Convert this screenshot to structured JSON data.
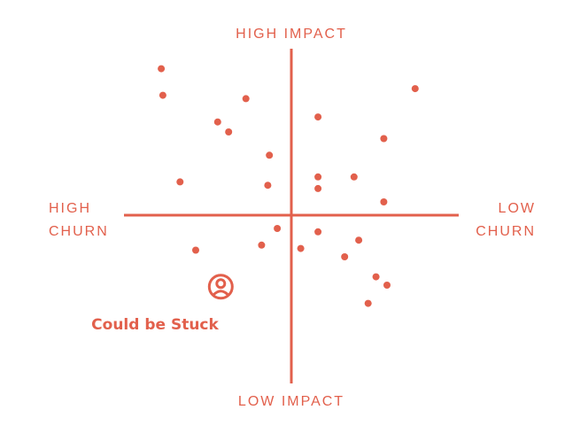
{
  "chart_data": {
    "type": "scatter",
    "title": "",
    "xlim": [
      -1,
      1
    ],
    "ylim": [
      -1,
      1
    ],
    "grid": false,
    "color": "#E2604C",
    "axis_labels": {
      "top": "HIGH IMPACT",
      "bottom": "LOW IMPACT",
      "left": [
        "HIGH",
        "CHURN"
      ],
      "right": [
        "LOW",
        "CHURN"
      ]
    },
    "annotation": {
      "label": "Could be Stuck",
      "icon": "user-circle-icon",
      "x": -0.45,
      "y": -0.43
    },
    "points": [
      {
        "x": -0.83,
        "y": 0.88
      },
      {
        "x": -0.82,
        "y": 0.72
      },
      {
        "x": -0.29,
        "y": 0.7
      },
      {
        "x": -0.47,
        "y": 0.56
      },
      {
        "x": -0.4,
        "y": 0.5
      },
      {
        "x": 0.17,
        "y": 0.59
      },
      {
        "x": 0.79,
        "y": 0.76
      },
      {
        "x": 0.59,
        "y": 0.46
      },
      {
        "x": -0.14,
        "y": 0.36
      },
      {
        "x": -0.71,
        "y": 0.2
      },
      {
        "x": -0.15,
        "y": 0.18
      },
      {
        "x": 0.17,
        "y": 0.23
      },
      {
        "x": 0.17,
        "y": 0.16
      },
      {
        "x": 0.4,
        "y": 0.23
      },
      {
        "x": 0.59,
        "y": 0.08
      },
      {
        "x": -0.09,
        "y": -0.08
      },
      {
        "x": 0.17,
        "y": -0.1
      },
      {
        "x": -0.19,
        "y": -0.18
      },
      {
        "x": -0.61,
        "y": -0.21
      },
      {
        "x": 0.06,
        "y": -0.2
      },
      {
        "x": 0.43,
        "y": -0.15
      },
      {
        "x": 0.34,
        "y": -0.25
      },
      {
        "x": 0.54,
        "y": -0.37
      },
      {
        "x": 0.61,
        "y": -0.42
      },
      {
        "x": 0.49,
        "y": -0.53
      }
    ]
  }
}
